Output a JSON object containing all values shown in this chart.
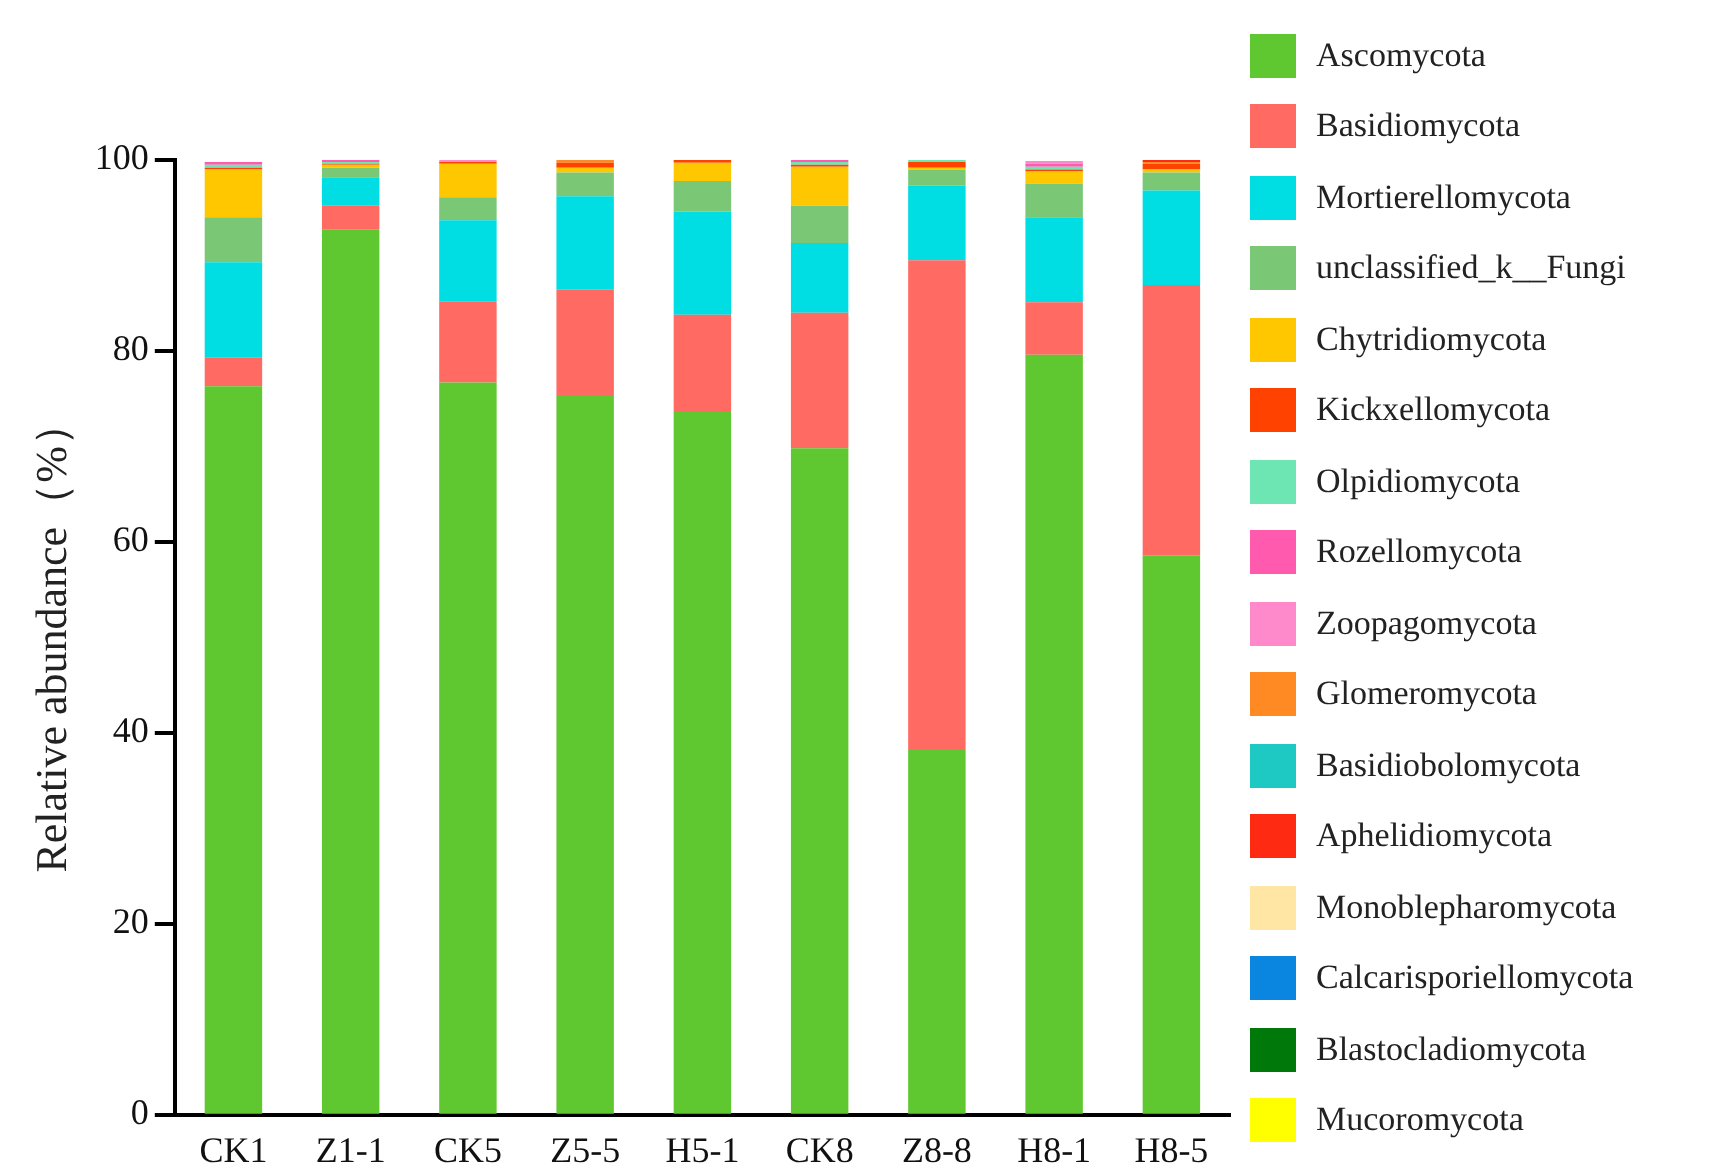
{
  "chart_data": {
    "type": "bar",
    "stacked": true,
    "ylabel": "Relative abundance（%）",
    "ylim": [
      0,
      100
    ],
    "yticks": [
      0,
      20,
      40,
      60,
      80,
      100
    ],
    "grid": false,
    "legend": "right",
    "categories": [
      "CK1",
      "Z1-1",
      "CK5",
      "Z5-5",
      "H5-1",
      "CK8",
      "Z8-8",
      "H8-1",
      "H8-5"
    ],
    "series": [
      {
        "name": "Ascomycota",
        "color": "#5fc72f",
        "values": [
          76.3,
          92.7,
          76.7,
          75.4,
          73.7,
          69.8,
          38.2,
          79.6,
          58.6
        ]
      },
      {
        "name": "Basidiomycota",
        "color": "#ff6a63",
        "values": [
          3,
          2.5,
          8.5,
          11,
          10.1,
          14.2,
          51.3,
          5.5,
          28.3
        ]
      },
      {
        "name": "Mortierellomycota",
        "color": "#00dde3",
        "values": [
          10,
          3,
          8.5,
          9.8,
          10.8,
          7.3,
          7.8,
          8.9,
          9.9
        ]
      },
      {
        "name": "unclassified_k__Fungi",
        "color": "#7ac876",
        "values": [
          4.7,
          1,
          2.4,
          2.5,
          3.2,
          3.9,
          1.7,
          3.5,
          1.9
        ]
      },
      {
        "name": "Chytridiomycota",
        "color": "#ffc700",
        "values": [
          5,
          0.3,
          3.5,
          0.5,
          1.9,
          4.1,
          0.2,
          1.3,
          0.3
        ]
      },
      {
        "name": "Kickxellomycota",
        "color": "#ff4200",
        "values": [
          0.2,
          0.1,
          0.2,
          0.5,
          0.3,
          0.2,
          0.6,
          0.2,
          0.6
        ]
      },
      {
        "name": "Olpidiomycota",
        "color": "#6ee6b4",
        "values": [
          0.3,
          0.2,
          0,
          0,
          0,
          0.3,
          0.2,
          0.3,
          0
        ]
      },
      {
        "name": "Rozellomycota",
        "color": "#ff5aae",
        "values": [
          0.3,
          0.2,
          0,
          0,
          0,
          0.2,
          0,
          0.3,
          0
        ]
      },
      {
        "name": "Zoopagomycota",
        "color": "#ff8acb",
        "values": [
          0,
          0,
          0.2,
          0,
          0,
          0,
          0,
          0.3,
          0
        ]
      },
      {
        "name": "Glomeromycota",
        "color": "#ff8a24",
        "values": [
          0,
          0,
          0,
          0.3,
          0,
          0,
          0,
          0,
          0.2
        ]
      },
      {
        "name": "Basidiobolomycota",
        "color": "#1ec8c3",
        "values": [
          0,
          0,
          0,
          0,
          0,
          0,
          0,
          0,
          0
        ]
      },
      {
        "name": "Aphelidiomycota",
        "color": "#ff2a12",
        "values": [
          0,
          0,
          0,
          0,
          0,
          0,
          0,
          0,
          0.2
        ]
      },
      {
        "name": "Monoblepharomycota",
        "color": "#ffe6a4",
        "values": [
          0,
          0,
          0,
          0,
          0,
          0,
          0,
          0,
          0
        ]
      },
      {
        "name": "Calcarisporiellomycota",
        "color": "#0a86e0",
        "values": [
          0,
          0,
          0,
          0,
          0,
          0,
          0,
          0,
          0
        ]
      },
      {
        "name": "Blastocladiomycota",
        "color": "#00780a",
        "values": [
          0,
          0,
          0,
          0,
          0,
          0,
          0,
          0,
          0
        ]
      },
      {
        "name": "Mucoromycota",
        "color": "#ffff00",
        "values": [
          0,
          0,
          0,
          0,
          0,
          0,
          0,
          0,
          0
        ]
      }
    ]
  }
}
